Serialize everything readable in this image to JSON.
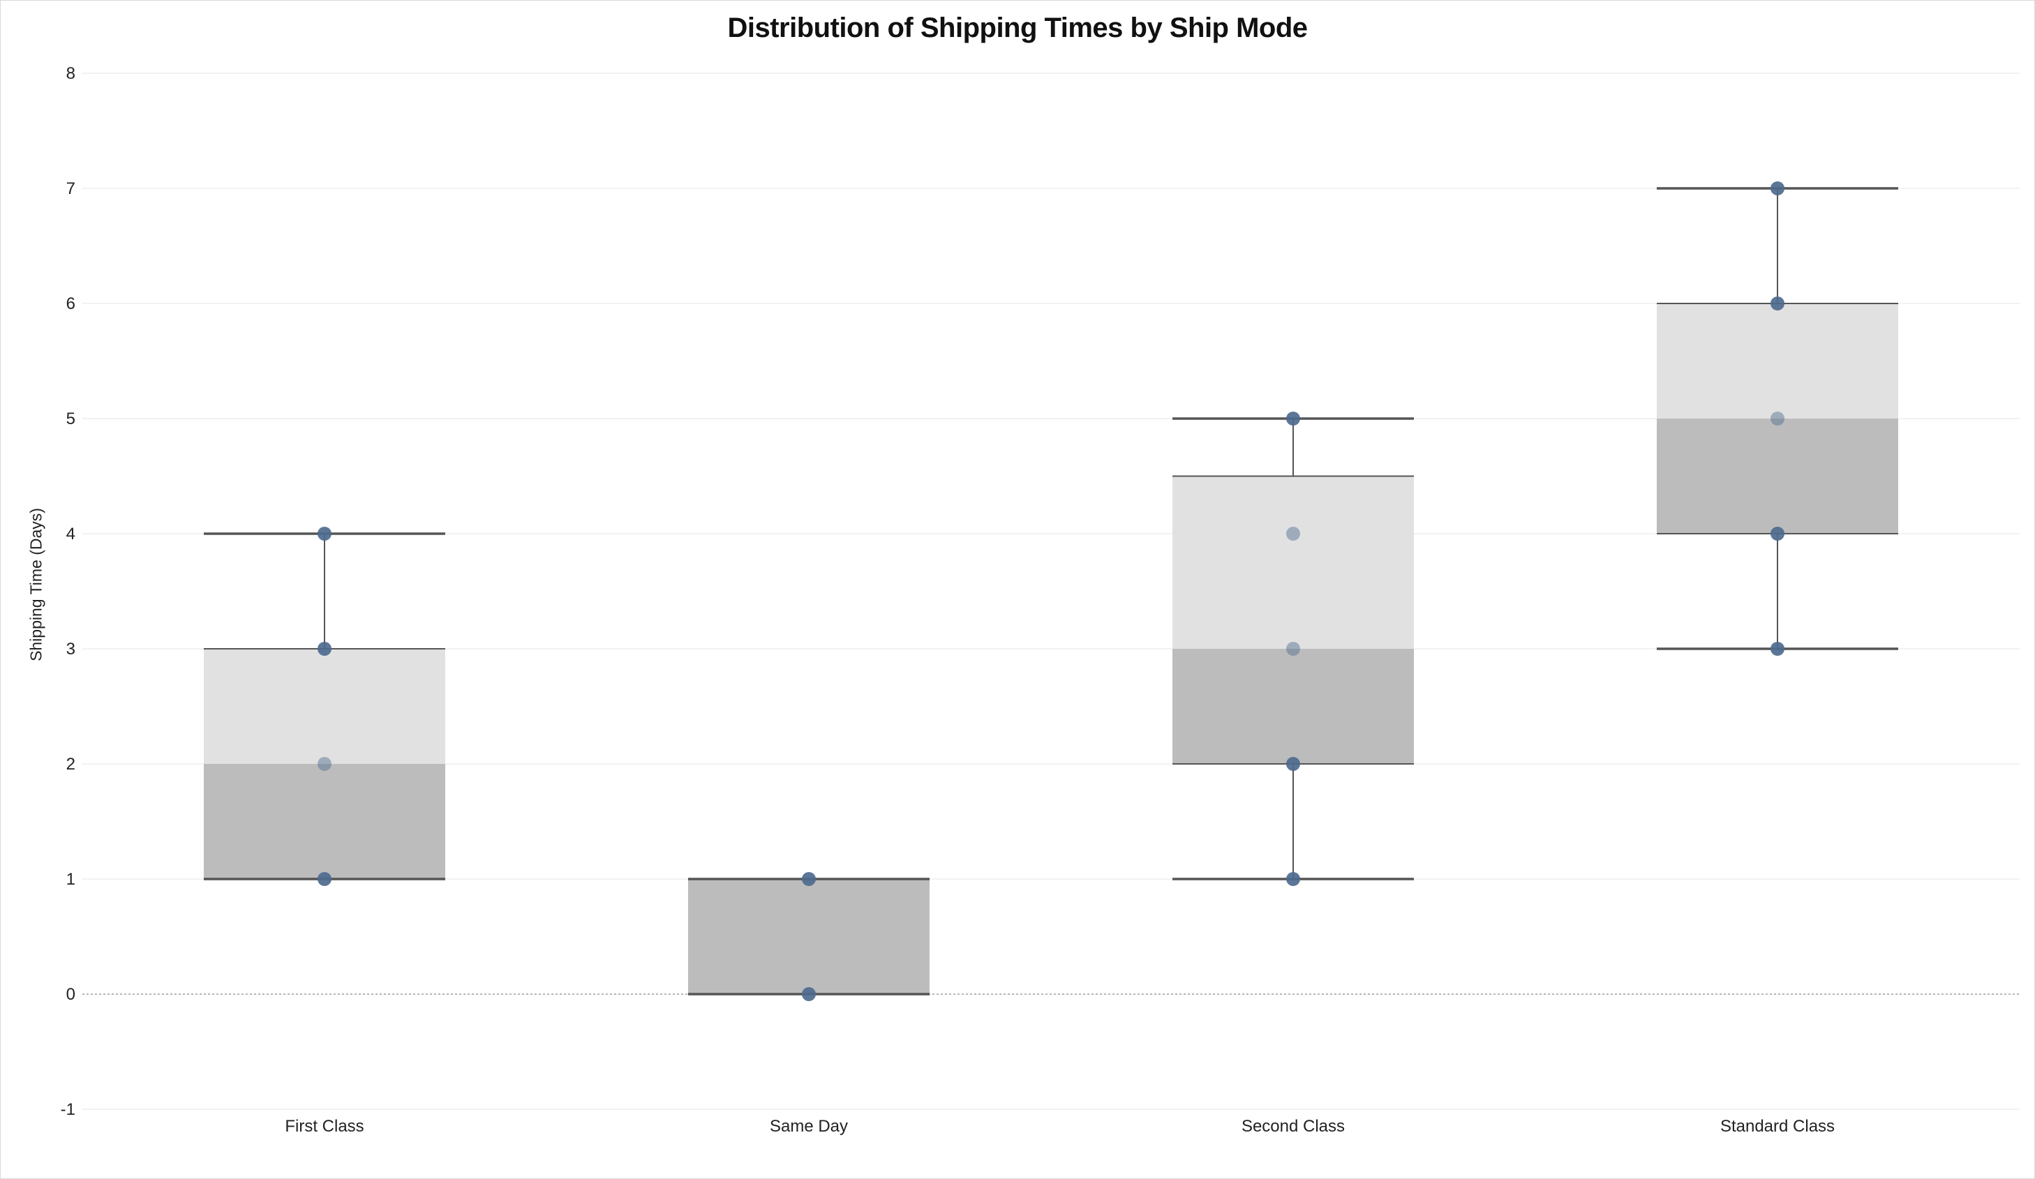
{
  "chart_data": {
    "type": "box",
    "title": "Distribution of Shipping Times by Ship Mode",
    "xlabel": "",
    "ylabel": "Shipping Time (Days)",
    "ylim": [
      -1,
      8
    ],
    "yticks": [
      "-1",
      "0",
      "1",
      "2",
      "3",
      "4",
      "5",
      "6",
      "7",
      "8"
    ],
    "grid": true,
    "categories": [
      "First Class",
      "Same Day",
      "Second Class",
      "Standard Class"
    ],
    "boxes": [
      {
        "category": "First Class",
        "whisker_low": 1,
        "q1": 1,
        "median": 2,
        "q3": 3,
        "whisker_high": 4,
        "points": [
          1,
          2,
          3,
          4
        ]
      },
      {
        "category": "Same Day",
        "whisker_low": 0,
        "q1": 0,
        "median": 1,
        "q3": 1,
        "whisker_high": 1,
        "points": [
          0,
          1
        ]
      },
      {
        "category": "Second Class",
        "whisker_low": 1,
        "q1": 2,
        "median": 3,
        "q3": 4.5,
        "whisker_high": 5,
        "points": [
          1,
          2,
          3,
          4,
          5
        ]
      },
      {
        "category": "Standard Class",
        "whisker_low": 3,
        "q1": 4,
        "median": 5,
        "q3": 6,
        "whisker_high": 7,
        "points": [
          3,
          4,
          5,
          6,
          7
        ]
      }
    ],
    "colors": {
      "lower_box": "#bcbcbc",
      "upper_box": "#e1e1e1",
      "whisker": "#555555",
      "point": "#4e6a8e",
      "grid": "#eeeeee",
      "zero_line": "#b5b5b5"
    }
  }
}
